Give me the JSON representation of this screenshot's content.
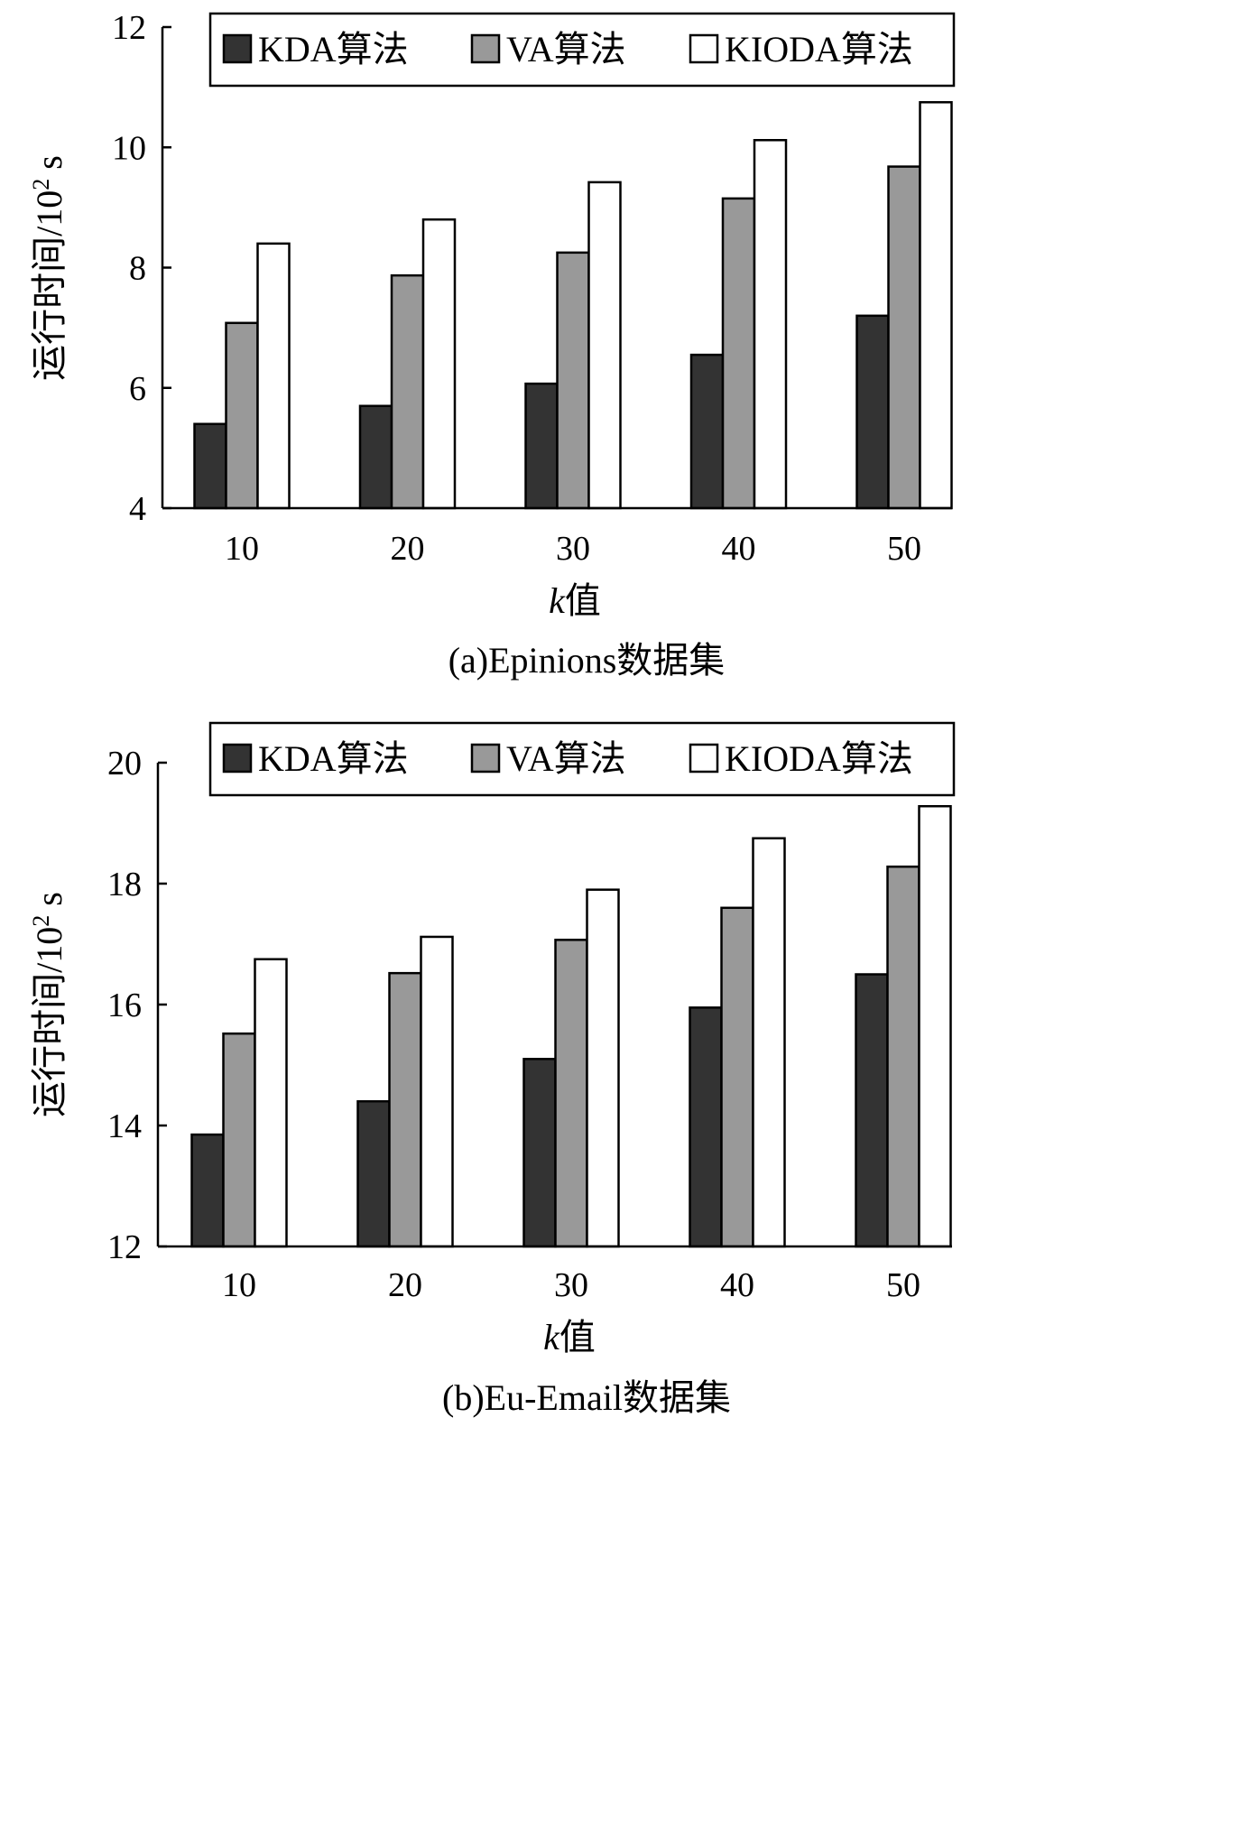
{
  "chart_data": [
    {
      "type": "bar",
      "caption": "(a)Epinions数据集",
      "xlabel_italic": "k",
      "xlabel_rest": "值",
      "ylabel_main": "运行时间/10",
      "ylabel_sup": "2",
      "ylabel_unit": " s",
      "ylim": [
        4,
        12
      ],
      "yticks": [
        "4",
        "6",
        "8",
        "10",
        "12"
      ],
      "categories": [
        "10",
        "20",
        "30",
        "40",
        "50"
      ],
      "legend_position": "top-right",
      "series": [
        {
          "name": "KDA算法",
          "color": "#333333",
          "values": [
            5.4,
            5.7,
            6.07,
            6.55,
            7.2
          ]
        },
        {
          "name": "VA算法",
          "color": "#999999",
          "values": [
            7.08,
            7.87,
            8.25,
            9.15,
            9.68
          ]
        },
        {
          "name": "KIODA算法",
          "color": "#ffffff",
          "values": [
            8.4,
            8.8,
            9.42,
            10.12,
            10.75
          ]
        }
      ]
    },
    {
      "type": "bar",
      "caption": "(b)Eu-Email数据集",
      "xlabel_italic": "k",
      "xlabel_rest": "值",
      "ylabel_main": "运行时间/10",
      "ylabel_sup": "2",
      "ylabel_unit": " s",
      "ylim": [
        12,
        20
      ],
      "yticks": [
        "12",
        "14",
        "16",
        "18",
        "20"
      ],
      "categories": [
        "10",
        "20",
        "30",
        "40",
        "50"
      ],
      "legend_position": "top-right",
      "series": [
        {
          "name": "KDA算法",
          "color": "#333333",
          "values": [
            13.85,
            14.4,
            15.1,
            15.95,
            16.5
          ]
        },
        {
          "name": "VA算法",
          "color": "#999999",
          "values": [
            15.52,
            16.52,
            17.07,
            17.6,
            18.28
          ]
        },
        {
          "name": "KIODA算法",
          "color": "#ffffff",
          "values": [
            16.75,
            17.12,
            17.9,
            18.75,
            19.28
          ]
        }
      ]
    }
  ]
}
